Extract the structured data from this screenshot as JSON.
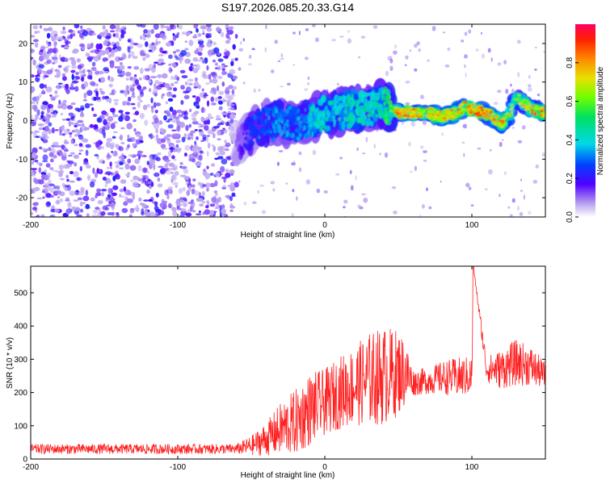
{
  "chart_data": [
    {
      "type": "heatmap",
      "title": "S197.2026.085.20.33.G14",
      "xlabel": "Height of straight line (km)",
      "ylabel": "Frequency (Hz)",
      "xlim": [
        -200,
        150
      ],
      "ylim": [
        -25,
        25
      ],
      "xticks": [
        "-200",
        "-100",
        "0",
        "100"
      ],
      "xtick_values": [
        -200,
        -100,
        0,
        100
      ],
      "yticks": [
        "-20",
        "-10",
        "0",
        "10",
        "20"
      ],
      "ytick_values": [
        -20,
        -10,
        0,
        10,
        20
      ],
      "colorbar": {
        "label": "Normalized spectral amplitude",
        "range": [
          0,
          1
        ],
        "ticks": [
          "0.0",
          "0.2",
          "0.4",
          "0.6",
          "0.8"
        ],
        "tick_values": [
          0.0,
          0.2,
          0.4,
          0.6,
          0.8
        ]
      },
      "noise_region_x": [
        -200,
        -60
      ],
      "ridge": {
        "x": [
          -60,
          -50,
          -40,
          -30,
          -20,
          -10,
          0,
          10,
          20,
          30,
          40,
          50,
          60,
          70,
          80,
          90,
          95,
          100,
          110,
          120,
          125,
          130,
          140,
          150
        ],
        "freq": [
          -6,
          -3,
          -1,
          0,
          -1,
          0,
          2,
          2,
          3,
          3,
          4,
          2,
          2,
          2,
          1,
          2,
          4,
          3,
          2,
          -1,
          1,
          6,
          3,
          2
        ],
        "amplitude": [
          0.15,
          0.3,
          0.35,
          0.4,
          0.35,
          0.45,
          0.5,
          0.45,
          0.55,
          0.5,
          0.55,
          0.95,
          0.9,
          0.85,
          0.9,
          0.9,
          0.85,
          0.95,
          0.95,
          0.9,
          0.85,
          0.7,
          0.9,
          0.95
        ]
      }
    },
    {
      "type": "line",
      "xlabel": "Height of straight line (km)",
      "ylabel": "SNR (10 * v/v)",
      "xlim": [
        -200,
        150
      ],
      "ylim": [
        0,
        580
      ],
      "xticks": [
        "-200",
        "-100",
        "0",
        "100"
      ],
      "xtick_values": [
        -200,
        -100,
        0,
        100
      ],
      "yticks": [
        "0",
        "100",
        "200",
        "300",
        "400",
        "500"
      ],
      "ytick_values": [
        0,
        100,
        200,
        300,
        400,
        500
      ],
      "series": [
        {
          "name": "SNR",
          "color": "#ff2020",
          "x": [
            -200,
            -150,
            -100,
            -60,
            -50,
            -40,
            -30,
            -20,
            -10,
            0,
            10,
            20,
            30,
            40,
            50,
            55,
            60,
            70,
            80,
            90,
            100,
            101,
            110,
            120,
            130,
            140,
            150
          ],
          "y": [
            30,
            30,
            30,
            30,
            40,
            60,
            90,
            110,
            150,
            170,
            200,
            220,
            240,
            250,
            260,
            260,
            230,
            235,
            245,
            245,
            250,
            580,
            270,
            270,
            290,
            280,
            250
          ],
          "spread": [
            15,
            15,
            15,
            15,
            30,
            50,
            80,
            100,
            110,
            100,
            110,
            120,
            140,
            150,
            130,
            100,
            40,
            40,
            50,
            60,
            60,
            0,
            40,
            60,
            70,
            60,
            40
          ]
        }
      ]
    }
  ]
}
